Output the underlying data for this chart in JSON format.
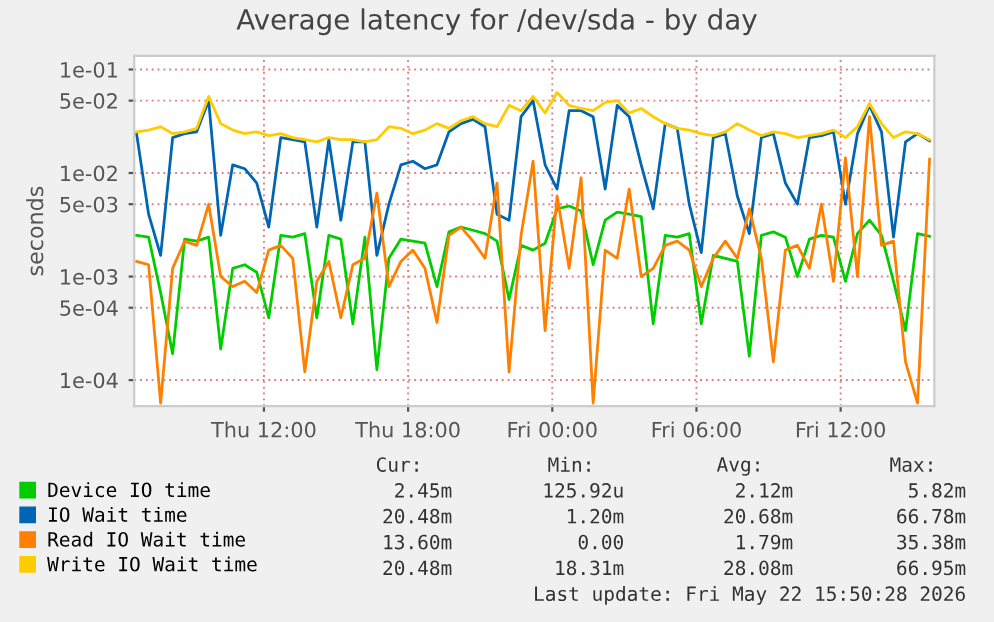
{
  "chart_data": {
    "type": "line",
    "title": "Average latency for /dev/sda - by day",
    "ylabel": "seconds",
    "log": "y",
    "grid": true,
    "legend": "bottom left",
    "marker": "none",
    "line_style": "solid",
    "xlim": [
      "2026-05-21T06:36",
      "2026-05-22T15:54"
    ],
    "xticks": [
      {
        "value": "2026-05-21T12:00",
        "label": "Thu 12:00"
      },
      {
        "value": "2026-05-21T18:00",
        "label": "Thu 18:00"
      },
      {
        "value": "2026-05-22T00:00",
        "label": "Fri 00:00"
      },
      {
        "value": "2026-05-22T06:00",
        "label": "Fri 06:00"
      },
      {
        "value": "2026-05-22T12:00",
        "label": "Fri 12:00"
      }
    ],
    "ylim": [
      5.6e-05,
      0.135
    ],
    "yticks": [
      {
        "value": 0.1,
        "label": "1e-01"
      },
      {
        "value": 0.05,
        "label": "5e-02"
      },
      {
        "value": 0.01,
        "label": "1e-02"
      },
      {
        "value": 0.005,
        "label": "5e-03"
      },
      {
        "value": 0.001,
        "label": "1e-03"
      },
      {
        "value": 0.0005,
        "label": "5e-04"
      },
      {
        "value": 0.0001,
        "label": "1e-04"
      }
    ],
    "x": [
      "2026-05-21T06:42",
      "2026-05-21T07:12",
      "2026-05-21T07:42",
      "2026-05-21T08:12",
      "2026-05-21T08:42",
      "2026-05-21T09:12",
      "2026-05-21T09:42",
      "2026-05-21T10:12",
      "2026-05-21T10:42",
      "2026-05-21T11:12",
      "2026-05-21T11:42",
      "2026-05-21T12:12",
      "2026-05-21T12:42",
      "2026-05-21T13:12",
      "2026-05-21T13:42",
      "2026-05-21T14:12",
      "2026-05-21T14:42",
      "2026-05-21T15:12",
      "2026-05-21T15:42",
      "2026-05-21T16:12",
      "2026-05-21T16:42",
      "2026-05-21T17:12",
      "2026-05-21T17:42",
      "2026-05-21T18:12",
      "2026-05-21T18:42",
      "2026-05-21T19:12",
      "2026-05-21T19:42",
      "2026-05-21T20:12",
      "2026-05-21T20:42",
      "2026-05-21T21:12",
      "2026-05-21T21:42",
      "2026-05-21T22:12",
      "2026-05-21T22:42",
      "2026-05-21T23:12",
      "2026-05-21T23:42",
      "2026-05-22T00:12",
      "2026-05-22T00:42",
      "2026-05-22T01:12",
      "2026-05-22T01:42",
      "2026-05-22T02:12",
      "2026-05-22T02:42",
      "2026-05-22T03:12",
      "2026-05-22T03:42",
      "2026-05-22T04:12",
      "2026-05-22T04:42",
      "2026-05-22T05:12",
      "2026-05-22T05:42",
      "2026-05-22T06:12",
      "2026-05-22T06:42",
      "2026-05-22T07:12",
      "2026-05-22T07:42",
      "2026-05-22T08:12",
      "2026-05-22T08:42",
      "2026-05-22T09:12",
      "2026-05-22T09:42",
      "2026-05-22T10:12",
      "2026-05-22T10:42",
      "2026-05-22T11:12",
      "2026-05-22T11:42",
      "2026-05-22T12:12",
      "2026-05-22T12:42",
      "2026-05-22T13:12",
      "2026-05-22T13:42",
      "2026-05-22T14:12",
      "2026-05-22T14:42",
      "2026-05-22T15:12",
      "2026-05-22T15:42"
    ],
    "series": [
      {
        "name": "Device IO time",
        "color": "#00cc00",
        "values": [
          0.0025,
          0.0024,
          0.0007,
          0.00018,
          0.0023,
          0.0022,
          0.0024,
          0.0002,
          0.0012,
          0.0013,
          0.0011,
          0.0004,
          0.0025,
          0.0024,
          0.0026,
          0.0004,
          0.0025,
          0.0023,
          0.00035,
          0.0024,
          0.000126,
          0.0015,
          0.0023,
          0.0022,
          0.0021,
          0.0008,
          0.0027,
          0.003,
          0.0028,
          0.0026,
          0.0022,
          0.0006,
          0.002,
          0.0018,
          0.0021,
          0.0045,
          0.0048,
          0.0043,
          0.0013,
          0.0035,
          0.0042,
          0.004,
          0.0038,
          0.00035,
          0.0025,
          0.0024,
          0.0026,
          0.00035,
          0.0016,
          0.0015,
          0.0014,
          0.00017,
          0.0025,
          0.0027,
          0.0024,
          0.001,
          0.0023,
          0.0025,
          0.0024,
          0.0009,
          0.0026,
          0.0035,
          0.0025,
          0.0009,
          0.0003,
          0.0026,
          0.00245
        ]
      },
      {
        "name": "IO Wait time",
        "color": "#0066b3",
        "values": [
          0.024,
          0.004,
          0.0016,
          0.022,
          0.024,
          0.025,
          0.05,
          0.0025,
          0.012,
          0.011,
          0.008,
          0.003,
          0.022,
          0.021,
          0.02,
          0.003,
          0.021,
          0.0035,
          0.02,
          0.02,
          0.0016,
          0.005,
          0.012,
          0.013,
          0.011,
          0.012,
          0.025,
          0.03,
          0.033,
          0.028,
          0.004,
          0.0035,
          0.035,
          0.05,
          0.012,
          0.007,
          0.04,
          0.04,
          0.035,
          0.007,
          0.045,
          0.035,
          0.012,
          0.0045,
          0.03,
          0.027,
          0.005,
          0.0017,
          0.022,
          0.024,
          0.006,
          0.0026,
          0.022,
          0.024,
          0.008,
          0.005,
          0.022,
          0.023,
          0.025,
          0.005,
          0.024,
          0.045,
          0.025,
          0.0024,
          0.02,
          0.024,
          0.02048
        ]
      },
      {
        "name": "Read IO Wait time",
        "color": "#ff8000",
        "values": [
          0.0014,
          0.0013,
          6e-05,
          0.0012,
          0.0022,
          0.002,
          0.005,
          0.001,
          0.0008,
          0.0009,
          0.0007,
          0.0018,
          0.002,
          0.0015,
          0.00012,
          0.0009,
          0.0014,
          0.0004,
          0.0013,
          0.0015,
          0.0064,
          0.0008,
          0.0014,
          0.0018,
          0.0012,
          0.00036,
          0.0025,
          0.003,
          0.0022,
          0.0015,
          0.008,
          0.00012,
          0.0025,
          0.013,
          0.0003,
          0.006,
          0.0012,
          0.009,
          6e-05,
          0.0018,
          0.0015,
          0.007,
          0.001,
          0.0012,
          0.002,
          0.0022,
          0.0018,
          0.0008,
          0.0015,
          0.0022,
          0.0015,
          0.0045,
          0.0015,
          0.00015,
          0.0018,
          0.002,
          0.0012,
          0.005,
          0.0009,
          0.014,
          0.001,
          0.035,
          0.002,
          0.0022,
          0.00015,
          6e-05,
          0.0136
        ]
      },
      {
        "name": "Write IO Wait time",
        "color": "#ffcc00",
        "values": [
          0.025,
          0.026,
          0.028,
          0.024,
          0.025,
          0.027,
          0.055,
          0.03,
          0.026,
          0.024,
          0.025,
          0.023,
          0.024,
          0.022,
          0.021,
          0.02,
          0.022,
          0.021,
          0.021,
          0.02,
          0.021,
          0.028,
          0.027,
          0.024,
          0.026,
          0.03,
          0.027,
          0.032,
          0.035,
          0.03,
          0.028,
          0.045,
          0.04,
          0.055,
          0.038,
          0.06,
          0.045,
          0.042,
          0.04,
          0.048,
          0.05,
          0.038,
          0.042,
          0.035,
          0.03,
          0.027,
          0.026,
          0.024,
          0.023,
          0.025,
          0.03,
          0.026,
          0.023,
          0.025,
          0.024,
          0.022,
          0.023,
          0.024,
          0.026,
          0.022,
          0.028,
          0.047,
          0.03,
          0.022,
          0.025,
          0.024,
          0.021
        ]
      }
    ],
    "annotations": [
      "Cur:",
      "Min:",
      "Avg:",
      "Max:",
      "2.45m",
      "125.92u",
      "2.12m",
      "5.82m",
      "20.48m",
      "1.20m",
      "20.68m",
      "66.78m",
      "13.60m",
      "0.00",
      "1.79m",
      "35.38m",
      "20.48m",
      "18.31m",
      "28.08m",
      "66.95m",
      "Last update: Fri May 22 15:50:28 2026"
    ]
  }
}
